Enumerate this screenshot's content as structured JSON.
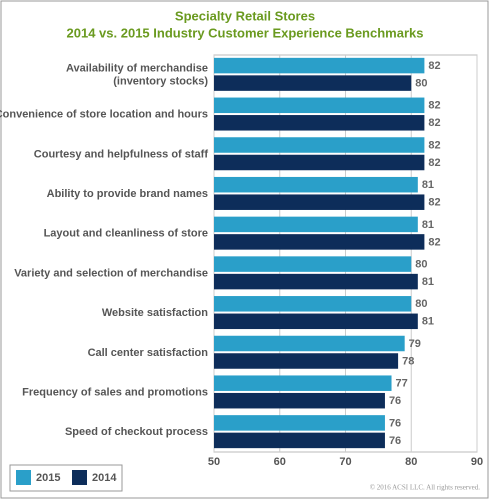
{
  "chart_data": {
    "type": "hbar",
    "title": "Specialty Retail Stores",
    "subtitle": "2014 vs. 2015 Industry Customer Experience Benchmarks",
    "categories": [
      "Availability of merchandise\n(inventory stocks)",
      "Convenience of store location and hours",
      "Courtesy and helpfulness of staff",
      "Ability to provide brand names",
      "Layout and cleanliness of store",
      "Variety and selection of merchandise",
      "Website satisfaction",
      "Call center satisfaction",
      "Frequency of sales and promotions",
      "Speed of checkout process"
    ],
    "series": [
      {
        "name": "2015",
        "color": "#2a9fc9",
        "values": [
          82,
          82,
          82,
          81,
          81,
          80,
          80,
          79,
          77,
          76
        ]
      },
      {
        "name": "2014",
        "color": "#0d2d5a",
        "values": [
          80,
          82,
          82,
          82,
          82,
          81,
          81,
          78,
          76,
          76
        ]
      }
    ],
    "xlim": [
      50,
      90
    ],
    "xticks": [
      50,
      60,
      70,
      80,
      90
    ],
    "grid": true,
    "legend": "bottom-left",
    "footnote": "© 2016 ACSI LLC. All rights reserved."
  }
}
